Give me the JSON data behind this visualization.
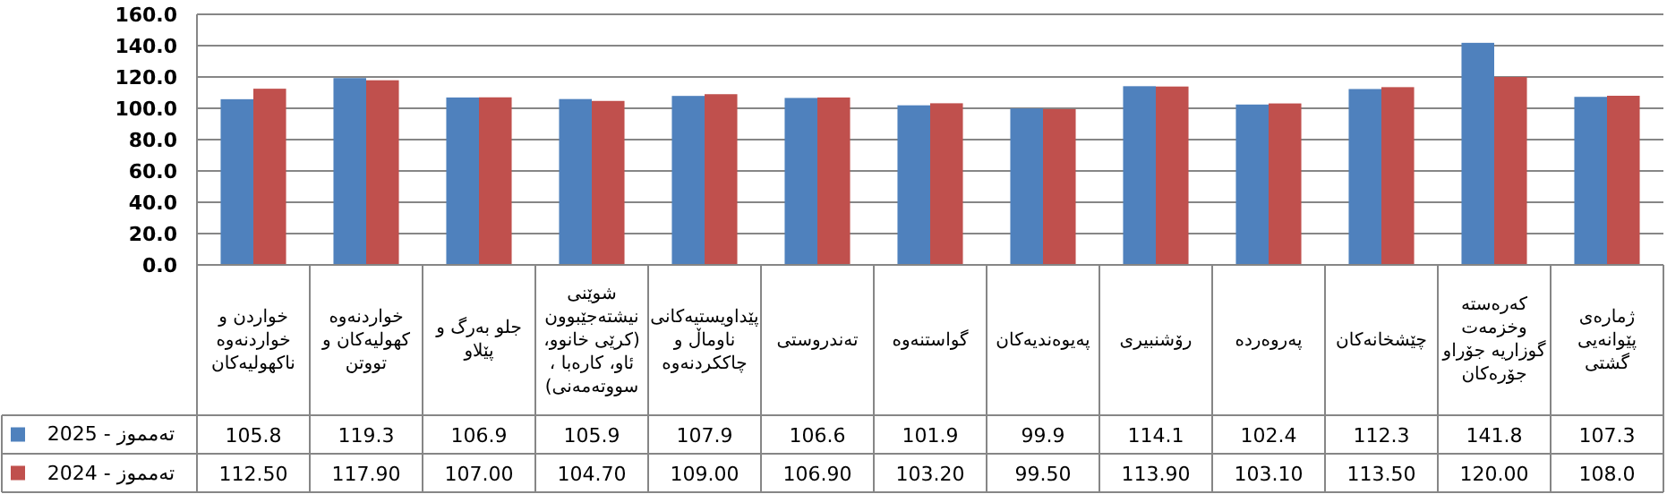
{
  "chart_data": {
    "type": "bar",
    "categories": [
      "خواردن و خواردنەوە ناکهولیەکان",
      "خواردنەوە کهولیەکان و تووتن",
      "جلو بەرگ و پێلاو",
      "شوێنی نیشتەجێبوون (کرێی خانوو، ئاو، کارەبا ، سووتەمەنی)",
      "پێداویستیەکانی ناوماڵ و چاککردنەوە",
      "تەندروستی",
      "گواستنەوە",
      "پەیوەندیەکان",
      "رۆشنبیری",
      "پەروەردە",
      "چێشخانەکان",
      "کەرەستە وخزمەت گوزاریە جۆراو جۆرەکان",
      "ژمارەی پێوانەیی گشتی"
    ],
    "series": [
      {
        "name": "تەمموز - 2025",
        "color": "#4f81bd",
        "values": [
          105.8,
          119.3,
          106.9,
          105.9,
          107.9,
          106.6,
          101.9,
          99.9,
          114.1,
          102.4,
          112.3,
          141.8,
          107.3
        ],
        "value_labels": [
          "105.8",
          "119.3",
          "106.9",
          "105.9",
          "107.9",
          "106.6",
          "101.9",
          "99.9",
          "114.1",
          "102.4",
          "112.3",
          "141.8",
          "107.3"
        ]
      },
      {
        "name": "تەمموز - 2024",
        "color": "#c0504d",
        "values": [
          112.5,
          117.9,
          107.0,
          104.7,
          109.0,
          106.9,
          103.2,
          99.5,
          113.9,
          103.1,
          113.5,
          120.0,
          108.0
        ],
        "value_labels": [
          "112.50",
          "117.90",
          "107.00",
          "104.70",
          "109.00",
          "106.90",
          "103.20",
          "99.50",
          "113.90",
          "103.10",
          "113.50",
          "120.00",
          "108.0"
        ]
      }
    ],
    "ylim": [
      0,
      160
    ],
    "yticks": [
      {
        "value": 0,
        "label": "0.0"
      },
      {
        "value": 20,
        "label": "20.0"
      },
      {
        "value": 40,
        "label": "40.0"
      },
      {
        "value": 60,
        "label": "60.0"
      },
      {
        "value": 80,
        "label": "80.0"
      },
      {
        "value": 100,
        "label": "100.0"
      },
      {
        "value": 120,
        "label": "120.0"
      },
      {
        "value": 140,
        "label": "140.0"
      },
      {
        "value": 160,
        "label": "160.0"
      }
    ],
    "grid": "y",
    "legend": "bottom"
  }
}
